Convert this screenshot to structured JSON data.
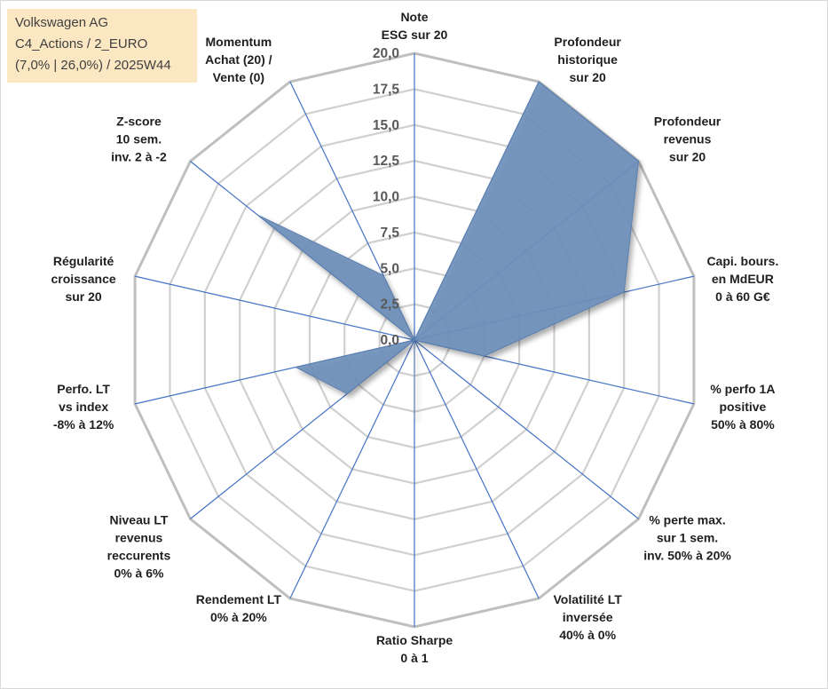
{
  "title": {
    "line1": "Volkswagen AG",
    "line2": "C4_Actions / 2_EURO",
    "line3": "(7,0% | 26,0%) / 2025W44"
  },
  "chart_data": {
    "type": "radar",
    "title": "Volkswagen AG",
    "axis_range": [
      0,
      20
    ],
    "tick_step": 2.5,
    "tick_labels": [
      "0,0",
      "2,5",
      "5,0",
      "7,5",
      "10,0",
      "12,5",
      "15,0",
      "17,5",
      "20,0"
    ],
    "categories": [
      [
        "Note",
        "ESG sur 20"
      ],
      [
        "Profondeur",
        "historique",
        "sur 20"
      ],
      [
        "Profondeur",
        "revenus",
        "sur 20"
      ],
      [
        "Capi. bours.",
        "en MdEUR",
        "0 à 60 G€"
      ],
      [
        "% perfo 1A",
        "positive",
        "50% à 80%"
      ],
      [
        "% perte max.",
        "sur 1 sem.",
        "inv. 50% à 20%"
      ],
      [
        "Volatilité LT",
        "inversée",
        "40% à 0%"
      ],
      [
        "Ratio Sharpe",
        "0 à 1"
      ],
      [
        "Rendement LT",
        "0% à 20%"
      ],
      [
        "Niveau LT",
        "revenus",
        "reccurents",
        "0% à 6%"
      ],
      [
        "Perfo. LT",
        "vs index",
        "-8% à 12%"
      ],
      [
        "Régularité",
        "croissance",
        "sur 20"
      ],
      [
        "Z-score",
        "10 sem.",
        "inv. 2 à -2"
      ],
      [
        "Momentum",
        "Achat (20) /",
        "Vente (0)"
      ]
    ],
    "series": [
      {
        "name": "Volkswagen AG",
        "color": "#6d8fba",
        "values": [
          0,
          20,
          20,
          15,
          5,
          0,
          0,
          5.5,
          0,
          6,
          8.5,
          0,
          14,
          5
        ]
      }
    ]
  }
}
